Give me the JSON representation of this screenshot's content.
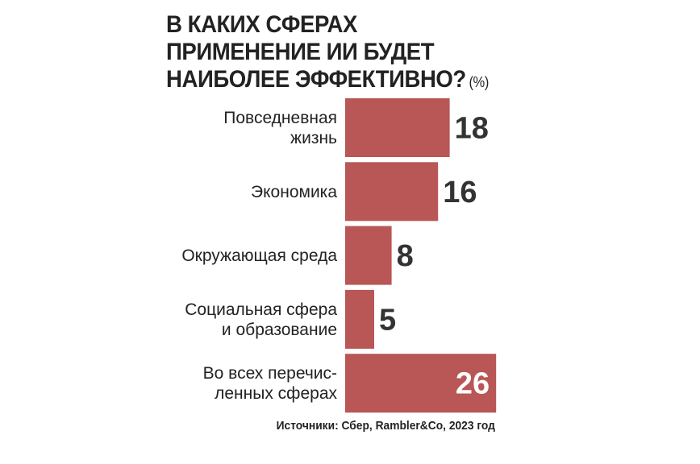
{
  "chart_data": {
    "type": "bar",
    "orientation": "horizontal",
    "title_lines": [
      "В КАКИХ СФЕРАХ",
      "ПРИМЕНЕНИЕ ИИ БУДЕТ",
      "НАИБОЛЕЕ ЭФФЕКТИВНО?"
    ],
    "unit": "(%)",
    "categories": [
      [
        "Повседневная",
        "жизнь"
      ],
      [
        "Экономика"
      ],
      [
        "Окружающая среда"
      ],
      [
        "Социальная сфера",
        "и образование"
      ],
      [
        "Во всех перечис-",
        "ленных сферах"
      ]
    ],
    "values": [
      18,
      16,
      8,
      5,
      26
    ],
    "value_labels": [
      "18",
      "16",
      "8",
      "5",
      "26"
    ],
    "highlight_index": 4,
    "bar_color": "#b95656",
    "value_label_color": "#333333",
    "highlight_label_color": "#ffffff",
    "source": "Источники: Сбер, Rambler&Co, 2023 год",
    "grid": false,
    "legend": "none",
    "xlim": [
      0,
      26
    ]
  }
}
